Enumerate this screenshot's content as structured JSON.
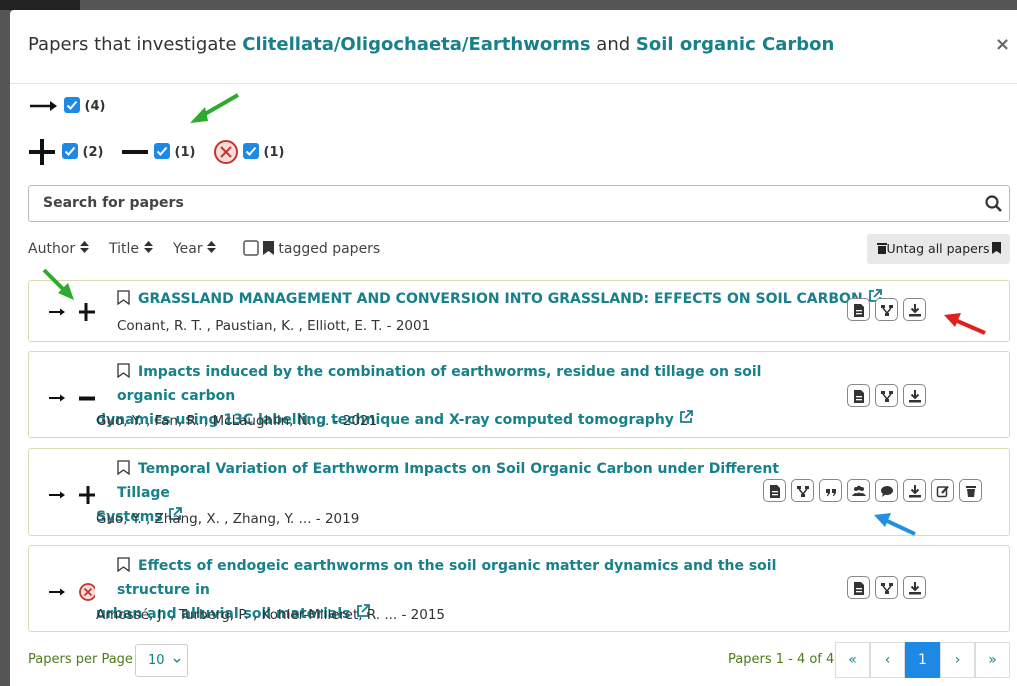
{
  "modal": {
    "title": {
      "prefix": "Papers that investigate",
      "topic_a": "Clitellata/Oligochaeta/Earthworms",
      "joiner": "and",
      "topic_b": "Soil organic Carbon"
    },
    "close": "×",
    "filters": {
      "all": "(4)",
      "positive": "(2)",
      "negative": "(1)",
      "null": "(1)"
    },
    "search_placeholder": "Search for papers",
    "sort": {
      "author": "Author",
      "title": "Title",
      "year": "Year",
      "tagged": "tagged papers",
      "untag": "Untag all papers"
    },
    "papers": [
      {
        "title": "GRASSLAND MANAGEMENT AND CONVERSION INTO GRASSLAND: EFFECTS ON SOIL CARBON",
        "authors": "Conant, R. T. , Paustian, K. , Elliott, E. T. - 2001"
      },
      {
        "title": [
          "Impacts induced by the combination of earthworms, residue and tillage on soil organic carbon",
          "dynamics using 13C labelling technique and X-ray computed tomography"
        ],
        "authors": "Guo, Y. , Fan, R. , McLaughlin, N. ... - 2021"
      },
      {
        "title": [
          "Temporal Variation of Earthworm Impacts on Soil Organic Carbon under Different Tillage",
          "Systems"
        ],
        "authors": "Guo, Y. , Zhang, X. , Zhang, Y. ... - 2019"
      },
      {
        "title": [
          "Effects of endogeic earthworms on the soil organic matter dynamics and the soil structure in",
          "urban and alluvial soil materials"
        ],
        "authors": "Amossé, J. , Turberg, P. , Kohler-Milleret, R. ... - 2015"
      }
    ],
    "footer": {
      "per_page_label": "Papers per Page",
      "per_page": "10",
      "range": "Papers 1 - 4 of 4",
      "pagination": [
        "«",
        "‹",
        "1",
        "›",
        "»"
      ]
    }
  }
}
